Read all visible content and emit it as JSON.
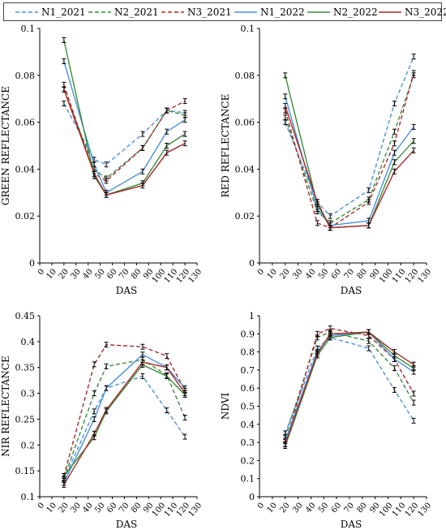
{
  "legend": [
    {
      "name": "N1_2021",
      "color": "#4a90d9",
      "dash": "dashed"
    },
    {
      "name": "N2_2021",
      "color": "#3c8c3c",
      "dash": "dashed"
    },
    {
      "name": "N3_2021",
      "color": "#a52a2a",
      "dash": "dashed"
    },
    {
      "name": "N1_2022",
      "color": "#4a90d9",
      "dash": "solid"
    },
    {
      "name": "N2_2022",
      "color": "#3c8c3c",
      "dash": "solid"
    },
    {
      "name": "N3_2022",
      "color": "#a52a2a",
      "dash": "solid"
    }
  ],
  "chart_data": [
    {
      "type": "line",
      "xlabel": "DAS",
      "ylabel": "GREEN REFLECTANCE",
      "xlim": [
        0,
        130
      ],
      "ylim": [
        0,
        0.1
      ],
      "xticks": [
        0,
        10,
        20,
        30,
        40,
        50,
        60,
        70,
        80,
        90,
        100,
        110,
        120,
        130
      ],
      "yticks": [
        0,
        0.02,
        0.04,
        0.06,
        0.08,
        0.1
      ],
      "ytick_labels": [
        "0",
        "0.02",
        "0.04",
        "0.06",
        "0.08",
        "0.1"
      ],
      "series": [
        {
          "name": "N1_2021",
          "x": [
            20,
            45,
            55,
            85,
            105,
            120
          ],
          "y": [
            0.068,
            0.044,
            0.042,
            0.055,
            0.065,
            0.064
          ]
        },
        {
          "name": "N2_2021",
          "x": [
            20,
            45,
            55,
            85,
            105,
            120
          ],
          "y": [
            0.074,
            0.04,
            0.036,
            0.049,
            0.065,
            0.063
          ]
        },
        {
          "name": "N3_2021",
          "x": [
            20,
            45,
            55,
            85,
            105,
            120
          ],
          "y": [
            0.076,
            0.038,
            0.035,
            0.049,
            0.065,
            0.069
          ]
        },
        {
          "name": "N1_2022",
          "x": [
            20,
            45,
            55,
            85,
            105,
            120
          ],
          "y": [
            0.086,
            0.042,
            0.03,
            0.039,
            0.056,
            0.061
          ]
        },
        {
          "name": "N2_2022",
          "x": [
            20,
            45,
            55,
            85,
            105,
            120
          ],
          "y": [
            0.095,
            0.037,
            0.029,
            0.034,
            0.05,
            0.055
          ]
        },
        {
          "name": "N3_2022",
          "x": [
            20,
            45,
            55,
            85,
            105,
            120
          ],
          "y": [
            0.074,
            0.038,
            0.029,
            0.033,
            0.047,
            0.051
          ]
        }
      ]
    },
    {
      "type": "line",
      "xlabel": "DAS",
      "ylabel": "RED REFLECTANCE",
      "xlim": [
        0,
        130
      ],
      "ylim": [
        0,
        0.1
      ],
      "xticks": [
        0,
        10,
        20,
        30,
        40,
        50,
        60,
        70,
        80,
        90,
        100,
        110,
        120,
        130
      ],
      "yticks": [
        0,
        0.02,
        0.04,
        0.06,
        0.08,
        0.1
      ],
      "ytick_labels": [
        "0",
        "0.02",
        "0.04",
        "0.06",
        "0.08",
        "0.1"
      ],
      "series": [
        {
          "name": "N1_2021",
          "x": [
            20,
            45,
            55,
            85,
            105,
            120
          ],
          "y": [
            0.06,
            0.026,
            0.02,
            0.031,
            0.068,
            0.088
          ]
        },
        {
          "name": "N2_2021",
          "x": [
            20,
            45,
            55,
            85,
            105,
            120
          ],
          "y": [
            0.062,
            0.022,
            0.017,
            0.027,
            0.056,
            0.08
          ]
        },
        {
          "name": "N3_2021",
          "x": [
            20,
            45,
            55,
            85,
            105,
            120
          ],
          "y": [
            0.065,
            0.017,
            0.015,
            0.026,
            0.051,
            0.081
          ]
        },
        {
          "name": "N1_2022",
          "x": [
            20,
            45,
            55,
            85,
            105,
            120
          ],
          "y": [
            0.071,
            0.023,
            0.016,
            0.018,
            0.047,
            0.058
          ]
        },
        {
          "name": "N2_2022",
          "x": [
            20,
            45,
            55,
            85,
            105,
            120
          ],
          "y": [
            0.08,
            0.025,
            0.015,
            0.016,
            0.043,
            0.052
          ]
        },
        {
          "name": "N3_2022",
          "x": [
            20,
            45,
            55,
            85,
            105,
            120
          ],
          "y": [
            0.067,
            0.026,
            0.015,
            0.016,
            0.039,
            0.048
          ]
        }
      ]
    },
    {
      "type": "line",
      "xlabel": "DAS",
      "ylabel": "NIR REFLECTANCE",
      "xlim": [
        0,
        130
      ],
      "ylim": [
        0.1,
        0.45
      ],
      "xticks": [
        0,
        10,
        20,
        30,
        40,
        50,
        60,
        70,
        80,
        90,
        100,
        110,
        120,
        130
      ],
      "yticks": [
        0.1,
        0.15,
        0.2,
        0.25,
        0.3,
        0.35,
        0.4,
        0.45
      ],
      "ytick_labels": [
        "0.1",
        "0.15",
        "0.2",
        "0.25",
        "0.3",
        "0.35",
        "0.4",
        "0.45"
      ],
      "series": [
        {
          "name": "N1_2021",
          "x": [
            20,
            45,
            55,
            85,
            105,
            120
          ],
          "y": [
            0.133,
            0.265,
            0.31,
            0.333,
            0.267,
            0.216
          ]
        },
        {
          "name": "N2_2021",
          "x": [
            20,
            45,
            55,
            85,
            105,
            120
          ],
          "y": [
            0.135,
            0.3,
            0.352,
            0.365,
            0.335,
            0.253
          ]
        },
        {
          "name": "N3_2021",
          "x": [
            20,
            45,
            55,
            85,
            105,
            120
          ],
          "y": [
            0.14,
            0.356,
            0.394,
            0.39,
            0.372,
            0.305
          ]
        },
        {
          "name": "N1_2022",
          "x": [
            20,
            45,
            55,
            85,
            105,
            120
          ],
          "y": [
            0.127,
            0.25,
            0.31,
            0.375,
            0.35,
            0.31
          ]
        },
        {
          "name": "N2_2022",
          "x": [
            20,
            45,
            55,
            85,
            105,
            120
          ],
          "y": [
            0.14,
            0.215,
            0.265,
            0.355,
            0.333,
            0.297
          ]
        },
        {
          "name": "N3_2022",
          "x": [
            20,
            45,
            55,
            85,
            105,
            120
          ],
          "y": [
            0.123,
            0.222,
            0.268,
            0.36,
            0.35,
            0.3
          ]
        }
      ]
    },
    {
      "type": "line",
      "xlabel": "DAS",
      "ylabel": "NDVI",
      "xlim": [
        0,
        130
      ],
      "ylim": [
        0,
        1
      ],
      "xticks": [
        0,
        10,
        20,
        30,
        40,
        50,
        60,
        70,
        80,
        90,
        100,
        110,
        120,
        130
      ],
      "yticks": [
        0,
        0.1,
        0.2,
        0.3,
        0.4,
        0.5,
        0.6,
        0.7,
        0.8,
        0.9,
        1
      ],
      "ytick_labels": [
        "0",
        "0.1",
        "0.2",
        "0.3",
        "0.4",
        "0.5",
        "0.6",
        "0.7",
        "0.8",
        "0.9",
        "1"
      ],
      "series": [
        {
          "name": "N1_2021",
          "x": [
            20,
            45,
            55,
            85,
            105,
            120
          ],
          "y": [
            0.35,
            0.82,
            0.88,
            0.82,
            0.59,
            0.42
          ]
        },
        {
          "name": "N2_2021",
          "x": [
            20,
            45,
            55,
            85,
            105,
            120
          ],
          "y": [
            0.33,
            0.88,
            0.91,
            0.86,
            0.71,
            0.52
          ]
        },
        {
          "name": "N3_2021",
          "x": [
            20,
            45,
            55,
            85,
            105,
            120
          ],
          "y": [
            0.29,
            0.9,
            0.93,
            0.89,
            0.76,
            0.57
          ]
        },
        {
          "name": "N1_2022",
          "x": [
            20,
            45,
            55,
            85,
            105,
            120
          ],
          "y": [
            0.31,
            0.8,
            0.89,
            0.91,
            0.76,
            0.69
          ]
        },
        {
          "name": "N2_2022",
          "x": [
            20,
            45,
            55,
            85,
            105,
            120
          ],
          "y": [
            0.28,
            0.78,
            0.88,
            0.91,
            0.78,
            0.71
          ]
        },
        {
          "name": "N3_2022",
          "x": [
            20,
            45,
            55,
            85,
            105,
            120
          ],
          "y": [
            0.29,
            0.79,
            0.9,
            0.91,
            0.8,
            0.73
          ]
        }
      ]
    }
  ]
}
